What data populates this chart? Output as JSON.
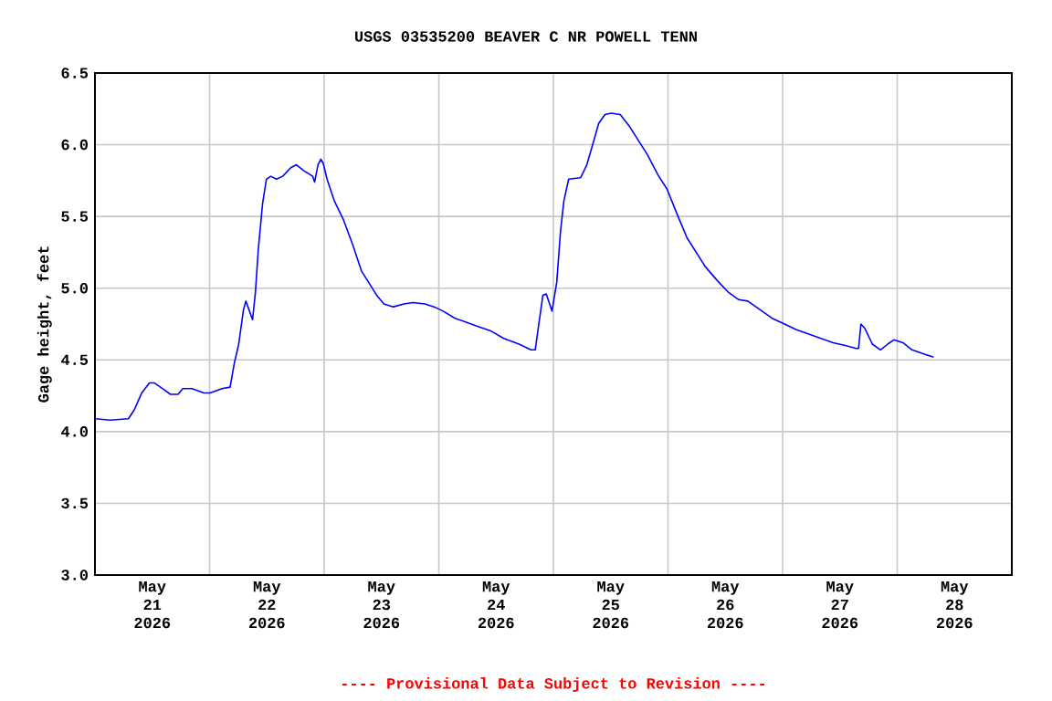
{
  "chart_data": {
    "type": "line",
    "title": "USGS 03535200 BEAVER C NR POWELL TENN",
    "ylabel": "Gage height, feet",
    "annotations": [
      "---- Provisional Data Subject to Revision ----"
    ],
    "grid": true,
    "xlim": [
      "2026-05-21T00:00",
      "2026-05-29T00:00"
    ],
    "xticks": [
      {
        "value": "2026-05-22",
        "label": null
      },
      {
        "value": "2026-05-23",
        "label": null
      },
      {
        "value": "2026-05-24",
        "label": null
      },
      {
        "value": "2026-05-25",
        "label": null
      },
      {
        "value": "2026-05-26",
        "label": null
      },
      {
        "value": "2026-05-27",
        "label": null
      },
      {
        "value": "2026-05-28",
        "label": null
      },
      {
        "value": "2026-05-21T12:00",
        "label": "May 21 2026"
      },
      {
        "value": "2026-05-22T12:00",
        "label": "May 22 2026"
      },
      {
        "value": "2026-05-23T12:00",
        "label": "May 23 2026"
      },
      {
        "value": "2026-05-24T12:00",
        "label": "May 24 2026"
      },
      {
        "value": "2026-05-25T12:00",
        "label": "May 25 2026"
      },
      {
        "value": "2026-05-26T12:00",
        "label": "May 26 2026"
      },
      {
        "value": "2026-05-27T12:00",
        "label": "May 27 2026"
      },
      {
        "value": "2026-05-28T12:00",
        "label": "May 28 2026"
      }
    ],
    "ylim": [
      3.0,
      6.5
    ],
    "yticks": [
      {
        "value": 3.0,
        "label": "3.0"
      },
      {
        "value": 3.5,
        "label": "3.5"
      },
      {
        "value": 4.0,
        "label": "4.0"
      },
      {
        "value": 4.5,
        "label": "4.5"
      },
      {
        "value": 5.0,
        "label": "5.0"
      },
      {
        "value": 5.5,
        "label": "5.5"
      },
      {
        "value": 6.0,
        "label": "6.0"
      },
      {
        "value": 6.5,
        "label": "6.5"
      }
    ],
    "x": [
      "2026-05-21T00:00",
      "2026-05-21T03:12",
      "2026-05-21T07:00",
      "2026-05-21T08:12",
      "2026-05-21T09:48",
      "2026-05-21T11:24",
      "2026-05-21T12:24",
      "2026-05-21T14:36",
      "2026-05-21T15:48",
      "2026-05-21T17:24",
      "2026-05-21T18:24",
      "2026-05-21T20:18",
      "2026-05-21T22:48",
      "2026-05-22T00:06",
      "2026-05-22T02:36",
      "2026-05-22T04:18",
      "2026-05-22T05:12",
      "2026-05-22T06:06",
      "2026-05-22T07:06",
      "2026-05-22T07:36",
      "2026-05-22T09:00",
      "2026-05-22T09:36",
      "2026-05-22T10:12",
      "2026-05-22T11:06",
      "2026-05-22T11:54",
      "2026-05-22T12:48",
      "2026-05-22T14:00",
      "2026-05-22T15:18",
      "2026-05-22T17:00",
      "2026-05-22T18:12",
      "2026-05-22T19:42",
      "2026-05-22T21:36",
      "2026-05-22T22:00",
      "2026-05-22T22:42",
      "2026-05-22T23:18",
      "2026-05-22T23:48",
      "2026-05-23T00:36",
      "2026-05-23T02:06",
      "2026-05-23T04:00",
      "2026-05-23T05:54",
      "2026-05-23T07:48",
      "2026-05-23T09:42",
      "2026-05-23T11:00",
      "2026-05-23T12:30",
      "2026-05-23T14:30",
      "2026-05-23T16:42",
      "2026-05-23T18:36",
      "2026-05-23T21:06",
      "2026-05-23T23:00",
      "2026-05-24T00:54",
      "2026-05-24T03:24",
      "2026-05-24T06:00",
      "2026-05-24T08:30",
      "2026-05-24T11:00",
      "2026-05-24T13:36",
      "2026-05-24T16:48",
      "2026-05-24T19:18",
      "2026-05-24T20:12",
      "2026-05-24T20:54",
      "2026-05-24T21:48",
      "2026-05-24T22:30",
      "2026-05-24T23:42",
      "2026-05-25T00:42",
      "2026-05-25T01:30",
      "2026-05-25T02:12",
      "2026-05-25T03:12",
      "2026-05-25T05:42",
      "2026-05-25T07:00",
      "2026-05-25T08:18",
      "2026-05-25T09:30",
      "2026-05-25T10:48",
      "2026-05-25T12:06",
      "2026-05-25T14:00",
      "2026-05-25T15:54",
      "2026-05-25T17:48",
      "2026-05-25T19:42",
      "2026-05-25T21:54",
      "2026-05-25T23:48",
      "2026-05-26T02:06",
      "2026-05-26T04:00",
      "2026-05-26T05:54",
      "2026-05-26T07:48",
      "2026-05-26T10:24",
      "2026-05-26T12:42",
      "2026-05-26T14:48",
      "2026-05-26T16:42",
      "2026-05-26T19:18",
      "2026-05-26T21:48",
      "2026-05-27T00:24",
      "2026-05-27T02:54",
      "2026-05-27T05:30",
      "2026-05-27T08:00",
      "2026-05-27T10:36",
      "2026-05-27T13:06",
      "2026-05-27T15:24",
      "2026-05-27T15:54",
      "2026-05-27T16:24",
      "2026-05-27T17:12",
      "2026-05-27T18:48",
      "2026-05-27T20:30",
      "2026-05-27T22:00",
      "2026-05-27T23:18",
      "2026-05-28T01:12",
      "2026-05-28T03:06",
      "2026-05-28T05:42",
      "2026-05-28T07:36"
    ],
    "series": [
      {
        "color": "#0000ff",
        "values": [
          4.09,
          4.08,
          4.09,
          4.15,
          4.27,
          4.34,
          4.34,
          4.29,
          4.26,
          4.26,
          4.3,
          4.3,
          4.27,
          4.27,
          4.3,
          4.31,
          4.48,
          4.61,
          4.85,
          4.91,
          4.78,
          4.97,
          5.27,
          5.59,
          5.76,
          5.78,
          5.76,
          5.78,
          5.84,
          5.86,
          5.82,
          5.78,
          5.74,
          5.86,
          5.9,
          5.87,
          5.76,
          5.61,
          5.48,
          5.31,
          5.12,
          5.02,
          4.95,
          4.89,
          4.87,
          4.89,
          4.9,
          4.89,
          4.87,
          4.84,
          4.79,
          4.76,
          4.73,
          4.7,
          4.65,
          4.61,
          4.57,
          4.57,
          4.74,
          4.95,
          4.96,
          4.84,
          5.04,
          5.4,
          5.61,
          5.76,
          5.77,
          5.86,
          6.01,
          6.15,
          6.21,
          6.22,
          6.21,
          6.13,
          6.03,
          5.93,
          5.79,
          5.69,
          5.5,
          5.35,
          5.25,
          5.15,
          5.05,
          4.97,
          4.92,
          4.91,
          4.85,
          4.79,
          4.75,
          4.71,
          4.68,
          4.65,
          4.62,
          4.6,
          4.58,
          4.58,
          4.75,
          4.72,
          4.61,
          4.57,
          4.61,
          4.64,
          4.62,
          4.57,
          4.54,
          4.52
        ]
      }
    ]
  }
}
